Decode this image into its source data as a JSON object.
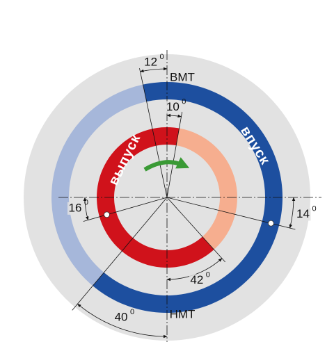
{
  "labels": {
    "tdc": "ВМТ",
    "bdc": "НМТ",
    "intake": "впуск",
    "exhaust": "выпуск"
  },
  "degree_sign": "0",
  "angles": {
    "intake_open_before_tdc": 12,
    "exhaust_close_after_tdc": 10,
    "exhaust_open_before_bdc": 42,
    "intake_close_after_bdc": 40,
    "left_marker_below_horizontal": 16,
    "right_marker_below_horizontal": 14
  }
}
